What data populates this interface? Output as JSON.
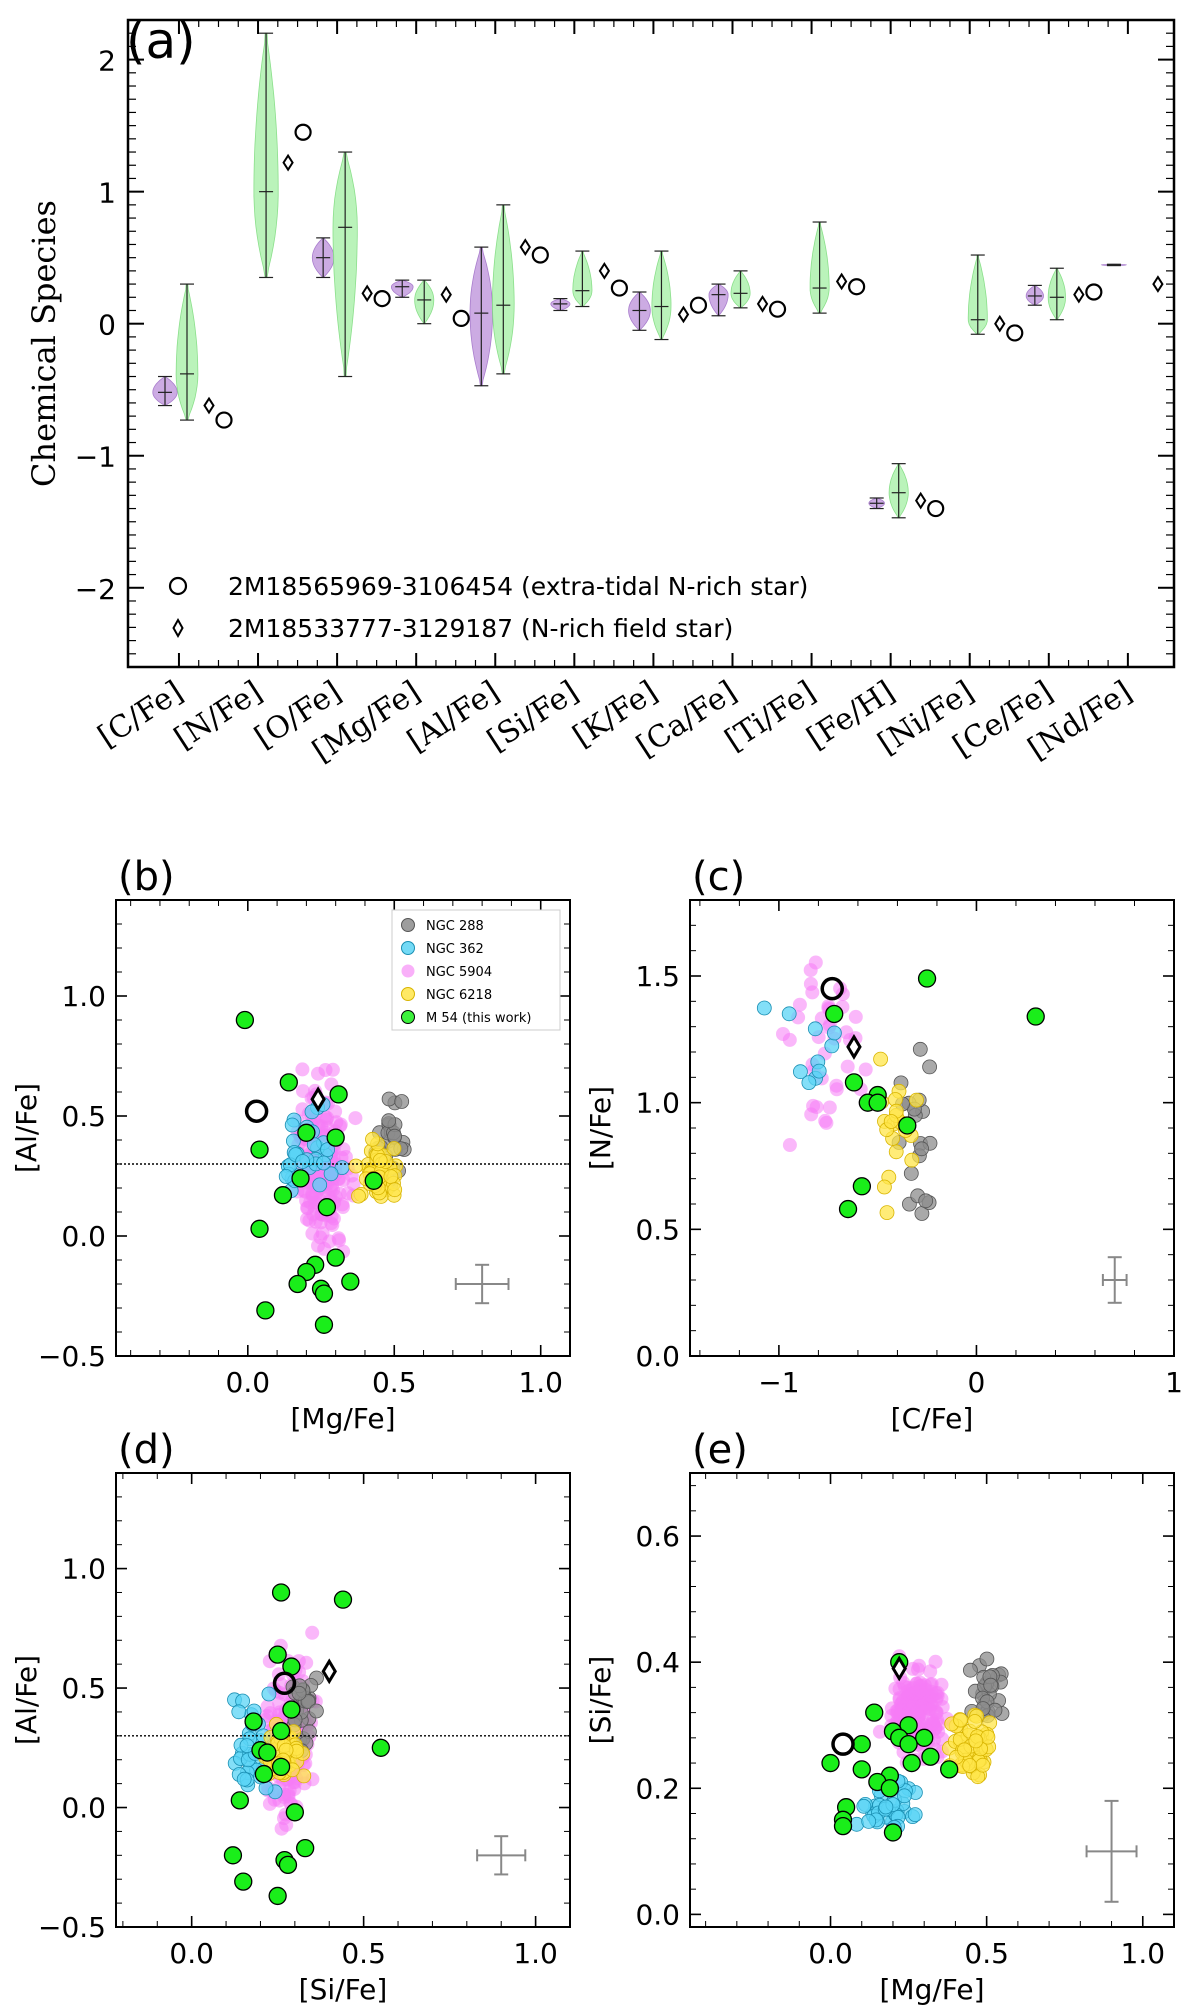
{
  "chart_data": [
    {
      "panel": "(a)",
      "type": "violin",
      "ylabel": "Chemical Species",
      "ylim": [
        -2.6,
        2.3
      ],
      "yticks": [
        "2",
        "1",
        "0",
        "−1",
        "−2"
      ],
      "categories": [
        "[C/Fe]",
        "[N/Fe]",
        "[O/Fe]",
        "[Mg/Fe]",
        "[Al/Fe]",
        "[Si/Fe]",
        "[K/Fe]",
        "[Ca/Fe]",
        "[Ti/Fe]",
        "[Fe/H]",
        "[Ni/Fe]",
        "[Ce/Fe]",
        "[Nd/Fe]"
      ],
      "series": [
        {
          "name": "violin-purple",
          "color": "#c7a2e0",
          "edge": "#a070c8",
          "violins": [
            {
              "min": -0.62,
              "max": -0.4,
              "median": -0.52,
              "hw": 0.28
            },
            null,
            {
              "min": 0.35,
              "max": 0.65,
              "median": 0.5,
              "hw": 0.25
            },
            {
              "min": 0.2,
              "max": 0.33,
              "median": 0.28,
              "hw": 0.25
            },
            {
              "min": -0.47,
              "max": 0.58,
              "median": 0.08,
              "hw": 0.26
            },
            {
              "min": 0.1,
              "max": 0.19,
              "median": 0.15,
              "hw": 0.22
            },
            {
              "min": -0.05,
              "max": 0.24,
              "median": 0.1,
              "hw": 0.25
            },
            {
              "min": 0.06,
              "max": 0.3,
              "median": 0.22,
              "hw": 0.22
            },
            null,
            {
              "min": -1.4,
              "max": -1.32,
              "median": -1.36,
              "hw": 0.18
            },
            null,
            {
              "min": 0.14,
              "max": 0.29,
              "median": 0.21,
              "hw": 0.2
            },
            {
              "min": 0.44,
              "max": 0.45,
              "median": 0.445,
              "hw": 0.28
            }
          ]
        },
        {
          "name": "violin-green",
          "color": "#b3f2b3",
          "edge": "#7fdc7f",
          "violins": [
            {
              "min": -0.73,
              "max": 0.3,
              "median": -0.38,
              "hw": 0.25
            },
            {
              "min": 0.35,
              "max": 2.2,
              "median": 1.0,
              "hw": 0.28
            },
            {
              "min": -0.4,
              "max": 1.3,
              "median": 0.73,
              "hw": 0.28
            },
            {
              "min": 0.0,
              "max": 0.33,
              "median": 0.18,
              "hw": 0.22
            },
            {
              "min": -0.38,
              "max": 0.9,
              "median": 0.14,
              "hw": 0.25
            },
            {
              "min": 0.13,
              "max": 0.55,
              "median": 0.25,
              "hw": 0.22
            },
            {
              "min": -0.12,
              "max": 0.55,
              "median": 0.13,
              "hw": 0.22
            },
            {
              "min": 0.12,
              "max": 0.4,
              "median": 0.23,
              "hw": 0.22
            },
            {
              "min": 0.08,
              "max": 0.77,
              "median": 0.27,
              "hw": 0.22
            },
            {
              "min": -1.47,
              "max": -1.06,
              "median": -1.28,
              "hw": 0.22
            },
            {
              "min": -0.08,
              "max": 0.52,
              "median": 0.03,
              "hw": 0.22
            },
            {
              "min": 0.03,
              "max": 0.42,
              "median": 0.2,
              "hw": 0.2
            },
            null
          ]
        }
      ],
      "extra_tidal_star": [
        -0.73,
        1.45,
        0.19,
        0.04,
        0.52,
        0.27,
        0.14,
        0.11,
        0.28,
        -1.4,
        -0.07,
        0.24,
        null
      ],
      "field_star": [
        -0.62,
        1.22,
        0.23,
        0.22,
        0.58,
        0.4,
        0.07,
        0.15,
        0.32,
        -1.34,
        0.0,
        0.22,
        0.3
      ],
      "legend": [
        {
          "marker": "circle",
          "label": "2M18565969-3106454 (extra-tidal N-rich star)"
        },
        {
          "marker": "diamond",
          "label": "2M18533777-3129187 (N-rich field star)"
        }
      ]
    },
    {
      "panel": "(b)",
      "type": "scatter",
      "xlabel": "[Mg/Fe]",
      "ylabel": "[Al/Fe]",
      "xlim": [
        -0.45,
        1.1
      ],
      "ylim": [
        -0.5,
        1.4
      ],
      "xticks": [
        "0.0",
        "0.5",
        "1.0"
      ],
      "yticks": [
        "−0.5",
        "0.0",
        "0.5",
        "1.0"
      ],
      "hline": 0.3,
      "errorbar": {
        "x": 0.8,
        "y": -0.2,
        "xerr": 0.09,
        "yerr": 0.08
      },
      "extra_tidal_star": [
        0.03,
        0.52
      ],
      "field_star": [
        0.24,
        0.57
      ],
      "m54": [
        [
          -0.01,
          0.9
        ],
        [
          0.14,
          0.64
        ],
        [
          0.31,
          0.59
        ],
        [
          0.04,
          0.36
        ],
        [
          0.2,
          0.43
        ],
        [
          0.3,
          0.41
        ],
        [
          0.18,
          0.24
        ],
        [
          0.12,
          0.17
        ],
        [
          0.27,
          0.12
        ],
        [
          0.04,
          0.03
        ],
        [
          0.43,
          0.23
        ],
        [
          0.23,
          -0.12
        ],
        [
          0.3,
          -0.09
        ],
        [
          0.2,
          -0.15
        ],
        [
          0.17,
          -0.2
        ],
        [
          0.25,
          -0.22
        ],
        [
          0.35,
          -0.19
        ],
        [
          0.26,
          -0.24
        ],
        [
          0.26,
          -0.37
        ],
        [
          0.06,
          -0.31
        ]
      ],
      "legend": [
        {
          "label": "NGC 288",
          "color": "#8c8c8c"
        },
        {
          "label": "NGC 362",
          "color": "#5ad4f5"
        },
        {
          "label": "NGC 5904",
          "color": "#f57bf5"
        },
        {
          "label": "NGC 6218",
          "color": "#ffe54a"
        },
        {
          "label": "M 54 (this work)",
          "color": "#1aee1a"
        }
      ]
    },
    {
      "panel": "(c)",
      "type": "scatter",
      "xlabel": "[C/Fe]",
      "ylabel": "[N/Fe]",
      "xlim": [
        -1.45,
        1.0
      ],
      "ylim": [
        0.0,
        1.8
      ],
      "xticks": [
        "−1",
        "0",
        "1"
      ],
      "yticks": [
        "0.0",
        "0.5",
        "1.0",
        "1.5"
      ],
      "errorbar": {
        "x": 0.7,
        "y": 0.3,
        "xerr": 0.06,
        "yerr": 0.09
      },
      "extra_tidal_star": [
        -0.73,
        1.45
      ],
      "field_star": [
        -0.62,
        1.22
      ],
      "m54": [
        [
          -0.25,
          1.49
        ],
        [
          -0.72,
          1.35
        ],
        [
          0.3,
          1.34
        ],
        [
          -0.62,
          1.08
        ],
        [
          -0.5,
          1.03
        ],
        [
          -0.55,
          1.0
        ],
        [
          -0.5,
          1.0
        ],
        [
          -0.35,
          0.91
        ],
        [
          -0.58,
          0.67
        ],
        [
          -0.65,
          0.58
        ]
      ]
    },
    {
      "panel": "(d)",
      "type": "scatter",
      "xlabel": "[Si/Fe]",
      "ylabel": "[Al/Fe]",
      "xlim": [
        -0.22,
        1.1
      ],
      "ylim": [
        -0.5,
        1.4
      ],
      "xticks": [
        "0.0",
        "0.5",
        "1.0"
      ],
      "yticks": [
        "−0.5",
        "0.0",
        "0.5",
        "1.0"
      ],
      "hline": 0.3,
      "errorbar": {
        "x": 0.9,
        "y": -0.2,
        "xerr": 0.07,
        "yerr": 0.08
      },
      "extra_tidal_star": [
        0.27,
        0.52
      ],
      "field_star": [
        0.4,
        0.57
      ],
      "m54": [
        [
          0.26,
          0.9
        ],
        [
          0.44,
          0.87
        ],
        [
          0.25,
          0.64
        ],
        [
          0.29,
          0.59
        ],
        [
          0.29,
          0.41
        ],
        [
          0.18,
          0.36
        ],
        [
          0.26,
          0.32
        ],
        [
          0.2,
          0.24
        ],
        [
          0.22,
          0.23
        ],
        [
          0.21,
          0.14
        ],
        [
          0.26,
          0.17
        ],
        [
          0.55,
          0.25
        ],
        [
          0.14,
          0.03
        ],
        [
          0.3,
          -0.02
        ],
        [
          0.27,
          -0.22
        ],
        [
          0.28,
          -0.24
        ],
        [
          0.12,
          -0.2
        ],
        [
          0.33,
          -0.17
        ],
        [
          0.15,
          -0.31
        ],
        [
          0.25,
          -0.37
        ]
      ]
    },
    {
      "panel": "(e)",
      "type": "scatter",
      "xlabel": "[Mg/Fe]",
      "ylabel": "[Si/Fe]",
      "xlim": [
        -0.45,
        1.1
      ],
      "ylim": [
        -0.02,
        0.7
      ],
      "xticks": [
        "0.0",
        "0.5",
        "1.0"
      ],
      "yticks": [
        "0.0",
        "0.2",
        "0.4",
        "0.6"
      ],
      "errorbar": {
        "x": 0.9,
        "y": 0.1,
        "xerr": 0.08,
        "yerr": 0.08
      },
      "extra_tidal_star": [
        0.04,
        0.27
      ],
      "field_star": [
        0.22,
        0.39
      ],
      "m54": [
        [
          0.22,
          0.4
        ],
        [
          0.14,
          0.32
        ],
        [
          0.25,
          0.3
        ],
        [
          0.2,
          0.29
        ],
        [
          0.22,
          0.28
        ],
        [
          0.3,
          0.28
        ],
        [
          0.25,
          0.27
        ],
        [
          0.1,
          0.27
        ],
        [
          0.32,
          0.25
        ],
        [
          0.26,
          0.24
        ],
        [
          0.38,
          0.23
        ],
        [
          0.0,
          0.24
        ],
        [
          0.19,
          0.22
        ],
        [
          0.1,
          0.23
        ],
        [
          0.15,
          0.21
        ],
        [
          0.19,
          0.2
        ],
        [
          0.05,
          0.17
        ],
        [
          0.04,
          0.15
        ],
        [
          0.04,
          0.14
        ],
        [
          0.2,
          0.13
        ]
      ]
    }
  ]
}
